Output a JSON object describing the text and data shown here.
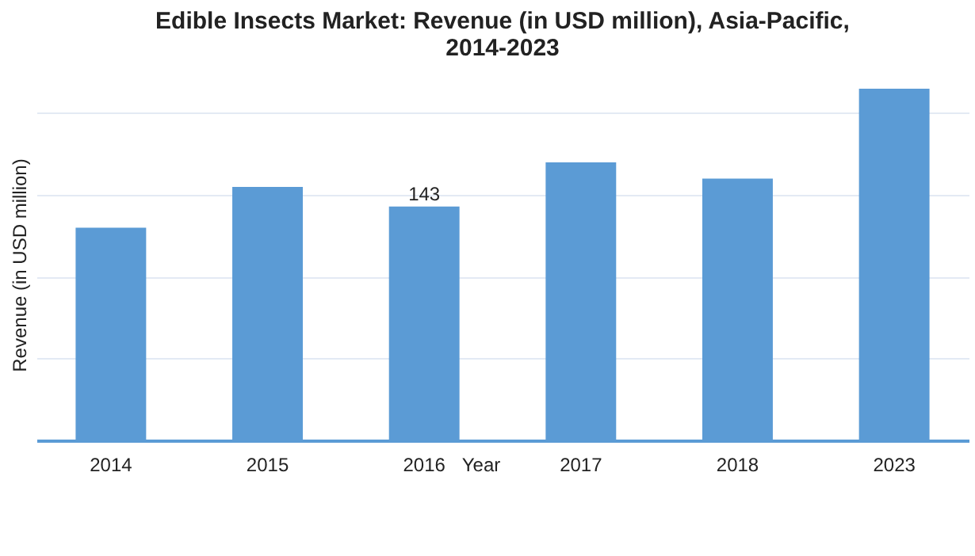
{
  "chart_data": {
    "type": "bar",
    "title": [
      "Edible Insects Market: Revenue (in USD million), Asia-Pacific,",
      "2014-2023"
    ],
    "xlabel": "Year",
    "ylabel": "Revenue (in USD million)",
    "categories": [
      "2014",
      "2015",
      "2016",
      "2017",
      "2018",
      "2023"
    ],
    "values": [
      130,
      155,
      143,
      170,
      160,
      215
    ],
    "value_labels": [
      null,
      null,
      "143",
      null,
      null,
      null
    ],
    "color": "#5b9bd5",
    "yticks": [
      {
        "value": 0,
        "label": null
      },
      {
        "value": 50,
        "label": null
      },
      {
        "value": 100,
        "label": null
      },
      {
        "value": 150,
        "label": null
      },
      {
        "value": 200,
        "label": null
      }
    ],
    "grid": "y",
    "tick_labels": "x"
  }
}
